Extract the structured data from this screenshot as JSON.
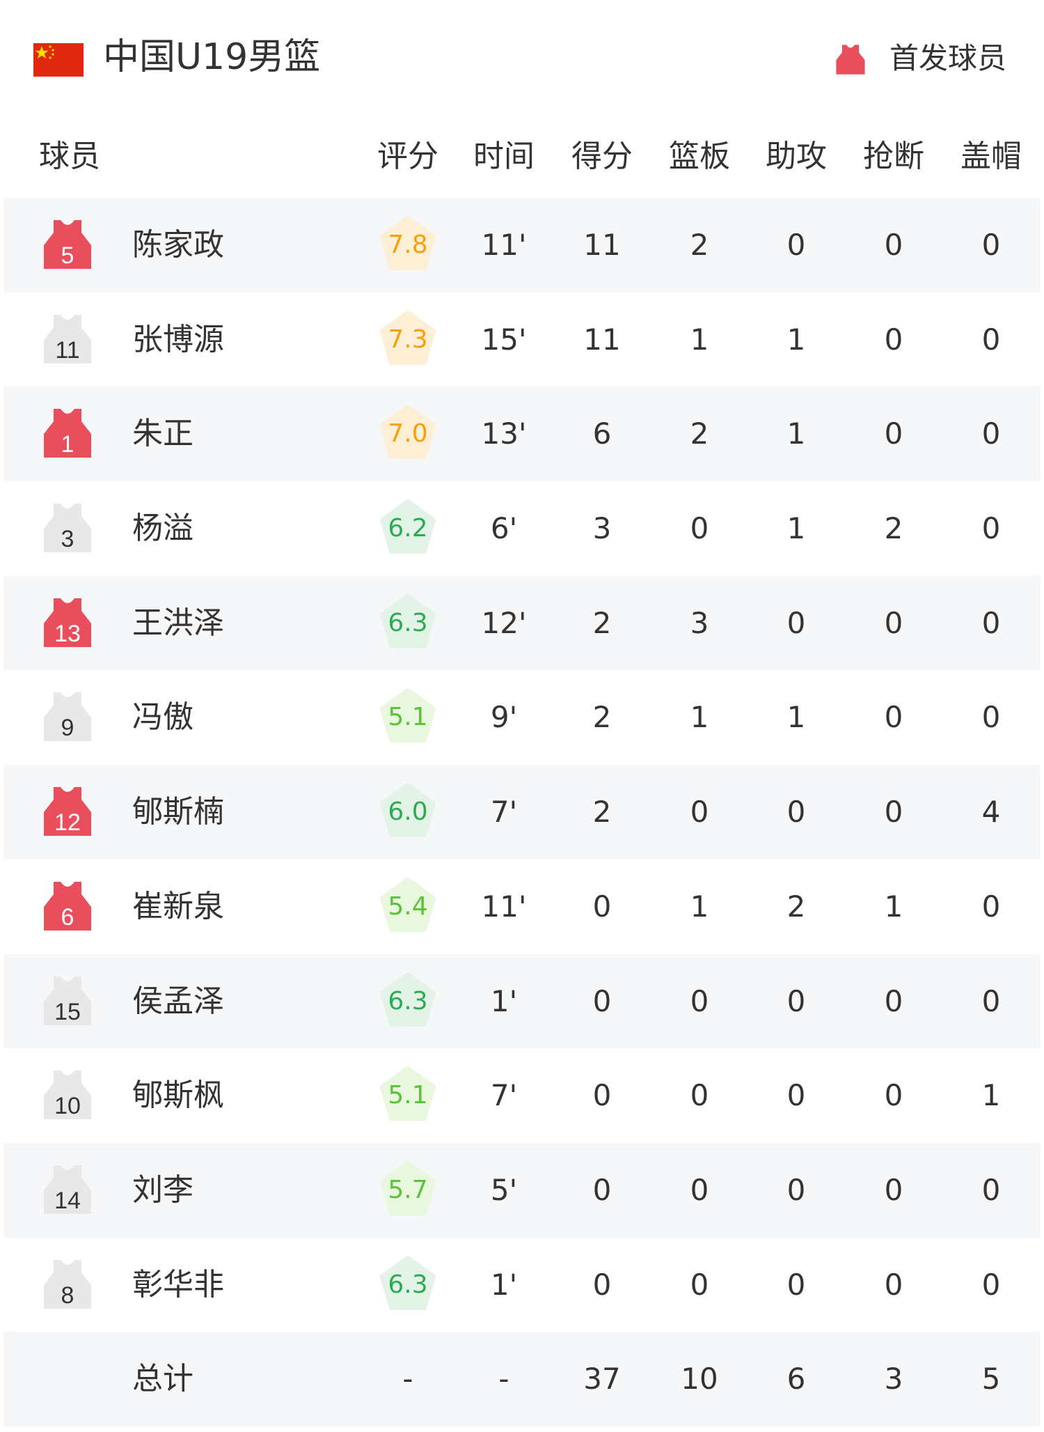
{
  "header": {
    "team": "中国U19男篮",
    "flag_icon": "china-flag",
    "legend_icon": "jersey-icon",
    "legend_label": "首发球员",
    "starter_color": "#e84e5c"
  },
  "columns": [
    "球员",
    "评分",
    "时间",
    "得分",
    "篮板",
    "助攻",
    "抢断",
    "盖帽"
  ],
  "players": [
    {
      "number": "5",
      "name": "陈家政",
      "starter": true,
      "rating": "7.8",
      "time": "11'",
      "pts": "11",
      "reb": "2",
      "ast": "0",
      "stl": "0",
      "blk": "0"
    },
    {
      "number": "11",
      "name": "张博源",
      "starter": false,
      "rating": "7.3",
      "time": "15'",
      "pts": "11",
      "reb": "1",
      "ast": "1",
      "stl": "0",
      "blk": "0"
    },
    {
      "number": "1",
      "name": "朱正",
      "starter": true,
      "rating": "7.0",
      "time": "13'",
      "pts": "6",
      "reb": "2",
      "ast": "1",
      "stl": "0",
      "blk": "0"
    },
    {
      "number": "3",
      "name": "杨溢",
      "starter": false,
      "rating": "6.2",
      "time": "6'",
      "pts": "3",
      "reb": "0",
      "ast": "1",
      "stl": "2",
      "blk": "0"
    },
    {
      "number": "13",
      "name": "王洪泽",
      "starter": true,
      "rating": "6.3",
      "time": "12'",
      "pts": "2",
      "reb": "3",
      "ast": "0",
      "stl": "0",
      "blk": "0"
    },
    {
      "number": "9",
      "name": "冯傲",
      "starter": false,
      "rating": "5.1",
      "time": "9'",
      "pts": "2",
      "reb": "1",
      "ast": "1",
      "stl": "0",
      "blk": "0"
    },
    {
      "number": "12",
      "name": "郇斯楠",
      "starter": true,
      "rating": "6.0",
      "time": "7'",
      "pts": "2",
      "reb": "0",
      "ast": "0",
      "stl": "0",
      "blk": "4"
    },
    {
      "number": "6",
      "name": "崔新泉",
      "starter": true,
      "rating": "5.4",
      "time": "11'",
      "pts": "0",
      "reb": "1",
      "ast": "2",
      "stl": "1",
      "blk": "0"
    },
    {
      "number": "15",
      "name": "侯孟泽",
      "starter": false,
      "rating": "6.3",
      "time": "1'",
      "pts": "0",
      "reb": "0",
      "ast": "0",
      "stl": "0",
      "blk": "0"
    },
    {
      "number": "10",
      "name": "郇斯枫",
      "starter": false,
      "rating": "5.1",
      "time": "7'",
      "pts": "0",
      "reb": "0",
      "ast": "0",
      "stl": "0",
      "blk": "1"
    },
    {
      "number": "14",
      "name": "刘李",
      "starter": false,
      "rating": "5.7",
      "time": "5'",
      "pts": "0",
      "reb": "0",
      "ast": "0",
      "stl": "0",
      "blk": "0"
    },
    {
      "number": "8",
      "name": "彰华非",
      "starter": false,
      "rating": "6.3",
      "time": "1'",
      "pts": "0",
      "reb": "0",
      "ast": "0",
      "stl": "0",
      "blk": "0"
    }
  ],
  "total": {
    "name": "总计",
    "rating": "-",
    "time": "-",
    "pts": "37",
    "reb": "10",
    "ast": "6",
    "stl": "3",
    "blk": "5"
  }
}
